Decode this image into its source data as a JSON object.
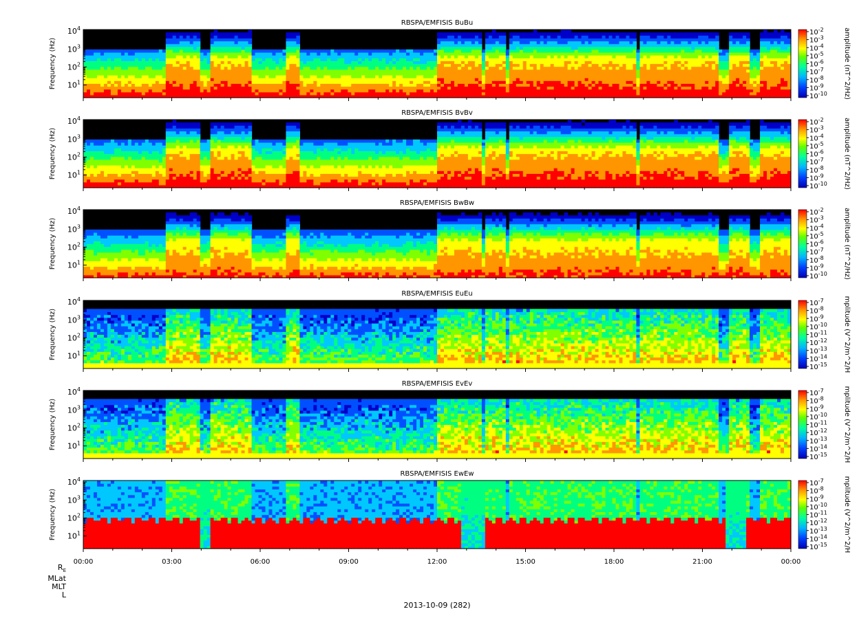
{
  "chart_data": [
    {
      "type": "heatmap",
      "title": "RBSPA/EMFISIS  BuBu",
      "ylabel": "Frequency (Hz)",
      "yscale": "log",
      "ylim": [
        2,
        12000
      ],
      "yticks": [
        "10^1",
        "10^2",
        "10^3",
        "10^4"
      ],
      "colorbar_label": "amplitude (nT^2/Hz)",
      "colorbar_ticks": [
        "10^-2",
        "10^-3",
        "10^-4",
        "10^-5",
        "10^-6",
        "10^-7",
        "10^-8",
        "10^-9",
        "10^-10"
      ],
      "colorbar_range": [
        -10,
        -2
      ],
      "field": "magnetic"
    },
    {
      "type": "heatmap",
      "title": "RBSPA/EMFISIS  BvBv",
      "ylabel": "Frequency (Hz)",
      "yscale": "log",
      "ylim": [
        2,
        12000
      ],
      "yticks": [
        "10^1",
        "10^2",
        "10^3",
        "10^4"
      ],
      "colorbar_label": "amplitude (nT^2/Hz)",
      "colorbar_ticks": [
        "10^-2",
        "10^-3",
        "10^-4",
        "10^-5",
        "10^-6",
        "10^-7",
        "10^-8",
        "10^-9",
        "10^-10"
      ],
      "colorbar_range": [
        -10,
        -2
      ],
      "field": "magnetic"
    },
    {
      "type": "heatmap",
      "title": "RBSPA/EMFISIS  BwBw",
      "ylabel": "Frequency (Hz)",
      "yscale": "log",
      "ylim": [
        2,
        12000
      ],
      "yticks": [
        "10^1",
        "10^2",
        "10^3",
        "10^4"
      ],
      "colorbar_label": "amplitude (nT^2/Hz)",
      "colorbar_ticks": [
        "10^-2",
        "10^-3",
        "10^-4",
        "10^-5",
        "10^-6",
        "10^-7",
        "10^-8",
        "10^-9",
        "10^-10"
      ],
      "colorbar_range": [
        -10,
        -2
      ],
      "field": "magnetic"
    },
    {
      "type": "heatmap",
      "title": "RBSPA/EMFISIS  EuEu",
      "ylabel": "Frequency (Hz)",
      "yscale": "log",
      "ylim": [
        2,
        12000
      ],
      "yticks": [
        "10^1",
        "10^2",
        "10^3",
        "10^4"
      ],
      "colorbar_label": "mplitude (V^2/m^2/H",
      "colorbar_ticks": [
        "10^-7",
        "10^-8",
        "10^-9",
        "10^-10",
        "10^-11",
        "10^-12",
        "10^-13",
        "10^-14",
        "10^-15"
      ],
      "colorbar_range": [
        -15,
        -7
      ],
      "field": "electric"
    },
    {
      "type": "heatmap",
      "title": "RBSPA/EMFISIS  EvEv",
      "ylabel": "Frequency (Hz)",
      "yscale": "log",
      "ylim": [
        2,
        12000
      ],
      "yticks": [
        "10^1",
        "10^2",
        "10^3",
        "10^4"
      ],
      "colorbar_label": "mplitude (V^2/m^2/H",
      "colorbar_ticks": [
        "10^-7",
        "10^-8",
        "10^-9",
        "10^-10",
        "10^-11",
        "10^-12",
        "10^-13",
        "10^-14",
        "10^-15"
      ],
      "colorbar_range": [
        -15,
        -7
      ],
      "field": "electric"
    },
    {
      "type": "heatmap",
      "title": "RBSPA/EMFISIS  EwEw",
      "ylabel": "Frequency (Hz)",
      "yscale": "log",
      "ylim": [
        2,
        12000
      ],
      "yticks": [
        "10^1",
        "10^2",
        "10^3",
        "10^4"
      ],
      "colorbar_label": "mplitude (V^2/m^2/H",
      "colorbar_ticks": [
        "10^-7",
        "10^-8",
        "10^-9",
        "10^-10",
        "10^-11",
        "10^-12",
        "10^-13",
        "10^-14",
        "10^-15"
      ],
      "colorbar_range": [
        -15,
        -7
      ],
      "field": "electric-w"
    }
  ],
  "x_axis": {
    "tick_labels": [
      "00:00",
      "03:00",
      "06:00",
      "09:00",
      "12:00",
      "15:00",
      "18:00",
      "21:00",
      "00:00"
    ],
    "range_hours": [
      0,
      24
    ]
  },
  "ephemeris_labels": [
    "R_E",
    "MLat",
    "MLT",
    "L"
  ],
  "date_label": "2013-10-09 (282)",
  "colors": {
    "colormap": [
      "#0000c8",
      "#0050ff",
      "#00c8ff",
      "#00ff80",
      "#80ff00",
      "#ffff00",
      "#ff9600",
      "#ff0000"
    ],
    "background": "#000000"
  }
}
